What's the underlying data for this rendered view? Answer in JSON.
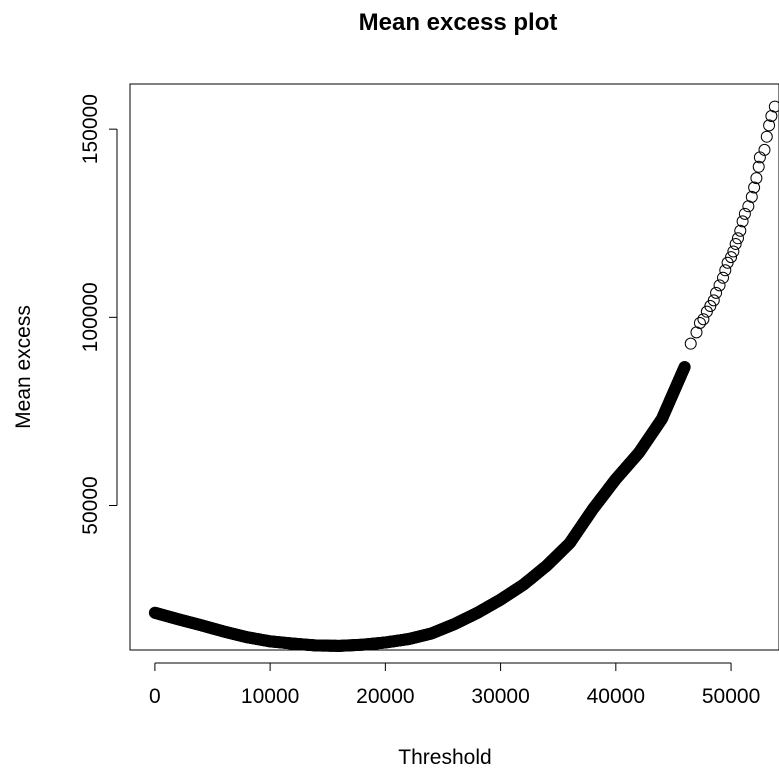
{
  "chart_data": {
    "type": "scatter",
    "title": "Mean excess plot",
    "xlabel": "Threshold",
    "ylabel": "Mean excess",
    "xlim": [
      -2160,
      54160
    ],
    "ylim": [
      11600,
      162000
    ],
    "x_ticks": [
      0,
      10000,
      20000,
      30000,
      40000,
      50000
    ],
    "x_tick_labels": [
      "0",
      "10000",
      "20000",
      "30000",
      "40000",
      "50000"
    ],
    "y_ticks": [
      50000,
      100000,
      150000
    ],
    "y_tick_labels": [
      "50000",
      "100000",
      "150000"
    ],
    "marker": "open-circle",
    "marker_color": "#000000",
    "grid": false,
    "curve": [
      [
        0,
        21500
      ],
      [
        2000,
        19800
      ],
      [
        4000,
        18200
      ],
      [
        6000,
        16500
      ],
      [
        8000,
        15000
      ],
      [
        10000,
        13900
      ],
      [
        12000,
        13300
      ],
      [
        14000,
        12800
      ],
      [
        16000,
        12700
      ],
      [
        18000,
        13000
      ],
      [
        20000,
        13600
      ],
      [
        22000,
        14500
      ],
      [
        24000,
        16000
      ],
      [
        26000,
        18500
      ],
      [
        28000,
        21500
      ],
      [
        30000,
        25000
      ],
      [
        32000,
        29000
      ],
      [
        34000,
        34000
      ],
      [
        36000,
        40000
      ],
      [
        38000,
        49000
      ],
      [
        40000,
        57000
      ],
      [
        42000,
        64000
      ],
      [
        44000,
        73000
      ],
      [
        46000,
        87000
      ],
      [
        48000,
        100000
      ],
      [
        50000,
        114000
      ],
      [
        51000,
        122000
      ],
      [
        52000,
        132000
      ],
      [
        53000,
        144000
      ],
      [
        53500,
        150000
      ],
      [
        54000,
        157000
      ]
    ],
    "sparse_points": [
      [
        46500,
        93000
      ],
      [
        47000,
        96000
      ],
      [
        47300,
        98500
      ],
      [
        47600,
        99500
      ],
      [
        47900,
        101500
      ],
      [
        48200,
        103000
      ],
      [
        48500,
        104500
      ],
      [
        48700,
        106500
      ],
      [
        49000,
        108500
      ],
      [
        49300,
        110500
      ],
      [
        49500,
        112500
      ],
      [
        49700,
        114500
      ],
      [
        50000,
        116000
      ],
      [
        50200,
        117500
      ],
      [
        50400,
        119500
      ],
      [
        50600,
        121000
      ],
      [
        50800,
        123000
      ],
      [
        51000,
        125500
      ],
      [
        51200,
        127500
      ],
      [
        51500,
        129500
      ],
      [
        51800,
        132000
      ],
      [
        52000,
        134500
      ],
      [
        52200,
        137000
      ],
      [
        52400,
        140000
      ],
      [
        52500,
        142500
      ],
      [
        52900,
        144500
      ],
      [
        53100,
        148000
      ],
      [
        53300,
        151000
      ],
      [
        53500,
        153500
      ],
      [
        53800,
        156000
      ]
    ]
  }
}
